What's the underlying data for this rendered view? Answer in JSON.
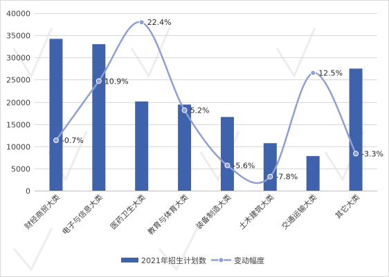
{
  "colors": {
    "bar": "#3f62ad",
    "line": "#8e9fd4"
  },
  "chart_data": {
    "type": "bar",
    "categories": [
      "财经商贸大类",
      "电子与信息大类",
      "医药卫生大类",
      "教育与体育大类",
      "装备制造大类",
      "土木建筑大类",
      "交通运输大类",
      "其它大类"
    ],
    "ylim": [
      0,
      40000
    ],
    "yticks": [
      0,
      5000,
      10000,
      15000,
      20000,
      25000,
      30000,
      35000,
      40000
    ],
    "series": [
      {
        "name": "2021年招生计划数",
        "type": "bar",
        "values": [
          34200,
          33000,
          20100,
          19400,
          16600,
          10700,
          7800,
          27500
        ]
      },
      {
        "name": "变动幅度",
        "type": "line",
        "smooth": true,
        "values": [
          -0.7,
          10.9,
          22.4,
          5.2,
          -5.6,
          -7.8,
          12.5,
          -3.3
        ],
        "labels": [
          "-0.7%",
          "10.9%",
          "22.4%",
          "5.2%",
          "-5.6%",
          "-7.8%",
          "12.5%",
          "-3.3%"
        ]
      }
    ],
    "legend_position": "bottom",
    "grid": true
  }
}
